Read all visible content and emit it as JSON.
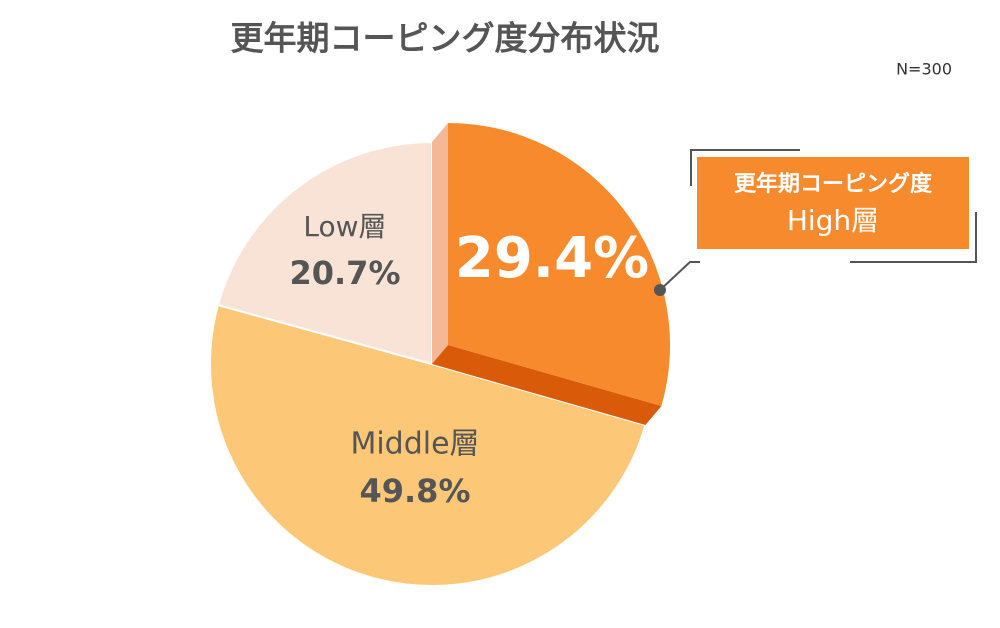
{
  "chart_data": {
    "type": "pie",
    "title": "更年期コーピング度分布状況",
    "note": "N=300",
    "categories": [
      "High層",
      "Middle層",
      "Low層"
    ],
    "values": [
      29.4,
      49.8,
      20.7
    ],
    "value_labels": [
      "29.4%",
      "49.8%",
      "20.7%"
    ],
    "colors": [
      "#f78a2d",
      "#fcc878",
      "#f8e3d6"
    ],
    "annotation": "更年期コーピング度"
  }
}
